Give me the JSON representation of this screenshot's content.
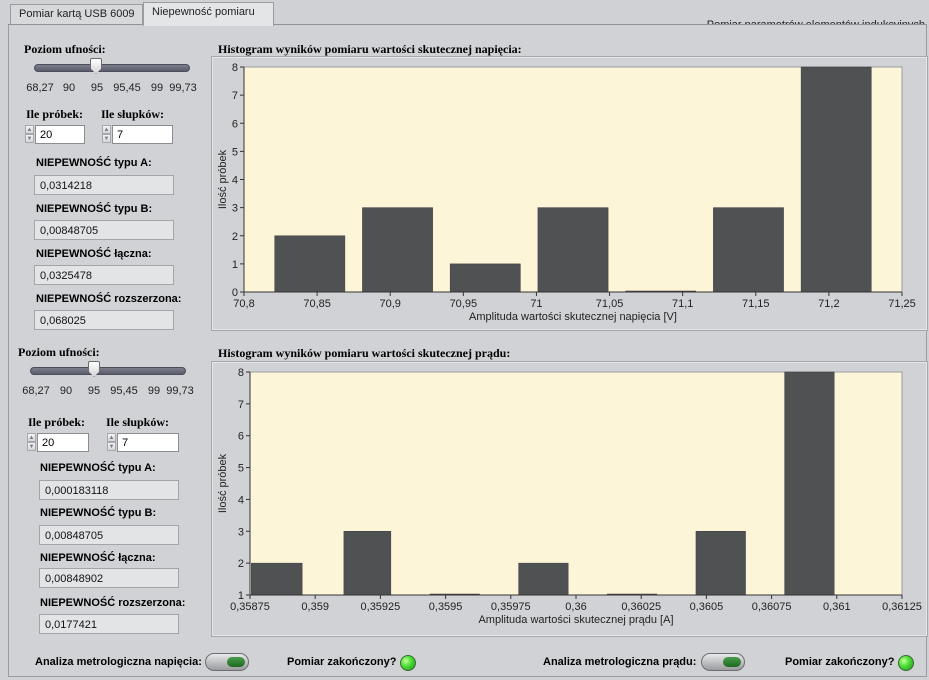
{
  "tabs": [
    {
      "label": "Pomiar kartą USB 6009"
    },
    {
      "label": "Niepewność pomiaru"
    }
  ],
  "tab_right_label": "Pomiar parametrów elementów indukcyjnych",
  "voltage": {
    "confidence_label": "Poziom ufności:",
    "slider_ticks": [
      "68,27",
      "90",
      "95",
      "95,45",
      "99",
      "99,73"
    ],
    "slider_value": 95,
    "samples_label": "Ile próbek:",
    "samples_value": "20",
    "bars_label": "Ile słupków:",
    "bars_value": "7",
    "type_a_label": "NIEPEWNOŚĆ typu A:",
    "type_a_value": "0,0314218",
    "type_b_label": "NIEPEWNOŚĆ typu B:",
    "type_b_value": "0,00848705",
    "combined_label": "NIEPEWNOŚĆ łączna:",
    "combined_value": "0,0325478",
    "expanded_label": "NIEPEWNOŚĆ rozszerzona:",
    "expanded_value": "0,068025"
  },
  "current": {
    "confidence_label": "Poziom ufności:",
    "slider_ticks": [
      "68,27",
      "90",
      "95",
      "95,45",
      "99",
      "99,73"
    ],
    "slider_value": 95,
    "samples_label": "Ile próbek:",
    "samples_value": "20",
    "bars_label": "Ile słupków:",
    "bars_value": "7",
    "type_a_label": "NIEPEWNOŚĆ typu A:",
    "type_a_value": "0,000183118",
    "type_b_label": "NIEPEWNOŚĆ typu B:",
    "type_b_value": "0,00848705",
    "combined_label": "NIEPEWNOŚĆ łączna:",
    "combined_value": "0,00848902",
    "expanded_label": "NIEPEWNOŚĆ rozszerzona:",
    "expanded_value": "0,0177421"
  },
  "bottom": {
    "voltage_analysis_label": "Analiza metrologiczna napięcia:",
    "voltage_done_label": "Pomiar zakończony?",
    "current_analysis_label": "Analiza metrologiczna prądu:",
    "current_done_label": "Pomiar zakończony?"
  },
  "colors": {
    "plot_bg": "#fdf5d8",
    "bar": "#505153",
    "led_on": "#4fe03a"
  },
  "chart_data": [
    {
      "type": "bar",
      "title": "Histogram wyników pomiaru wartości skutecznej napięcia:",
      "xlabel": "Amplituda wartości skutecznej napięcia [V]",
      "ylabel": "Ilość próbek",
      "xlim": [
        70.8,
        71.25
      ],
      "ylim": [
        0,
        8
      ],
      "x_ticks": [
        "70,8",
        "70,85",
        "70,9",
        "70,95",
        "71",
        "71,05",
        "71,1",
        "71,15",
        "71,2",
        "71,25"
      ],
      "y_ticks": [
        "0",
        "1",
        "2",
        "3",
        "4",
        "5",
        "6",
        "7",
        "8"
      ],
      "bins": [
        {
          "from": 70.821,
          "to": 70.869,
          "value": 2
        },
        {
          "from": 70.881,
          "to": 70.929,
          "value": 3
        },
        {
          "from": 70.941,
          "to": 70.989,
          "value": 1
        },
        {
          "from": 71.001,
          "to": 71.049,
          "value": 3
        },
        {
          "from": 71.061,
          "to": 71.109,
          "value": 0
        },
        {
          "from": 71.121,
          "to": 71.169,
          "value": 3
        },
        {
          "from": 71.181,
          "to": 71.229,
          "value": 8
        }
      ],
      "grid": false
    },
    {
      "type": "bar",
      "title": "Histogram wyników pomiaru wartości skutecznej prądu:",
      "xlabel": "Amplituda wartości skutecznej prądu [A]",
      "ylabel": "Ilość próbek",
      "xlim": [
        0.35875,
        0.36125
      ],
      "ylim": [
        1,
        8
      ],
      "x_ticks": [
        "0,35875",
        "0,359",
        "0,35925",
        "0,3595",
        "0,35975",
        "0,36",
        "0,36025",
        "0,3605",
        "0,36075",
        "0,361",
        "0,36125"
      ],
      "y_ticks": [
        "1",
        "2",
        "3",
        "4",
        "5",
        "6",
        "7",
        "8"
      ],
      "bins": [
        {
          "from": 0.358755,
          "to": 0.35895,
          "value": 2
        },
        {
          "from": 0.35911,
          "to": 0.35929,
          "value": 3
        },
        {
          "from": 0.35944,
          "to": 0.35963,
          "value": 1
        },
        {
          "from": 0.35978,
          "to": 0.35997,
          "value": 2
        },
        {
          "from": 0.36012,
          "to": 0.36031,
          "value": 1
        },
        {
          "from": 0.36046,
          "to": 0.36065,
          "value": 3
        },
        {
          "from": 0.3608,
          "to": 0.36099,
          "value": 8
        }
      ],
      "grid": false
    }
  ]
}
